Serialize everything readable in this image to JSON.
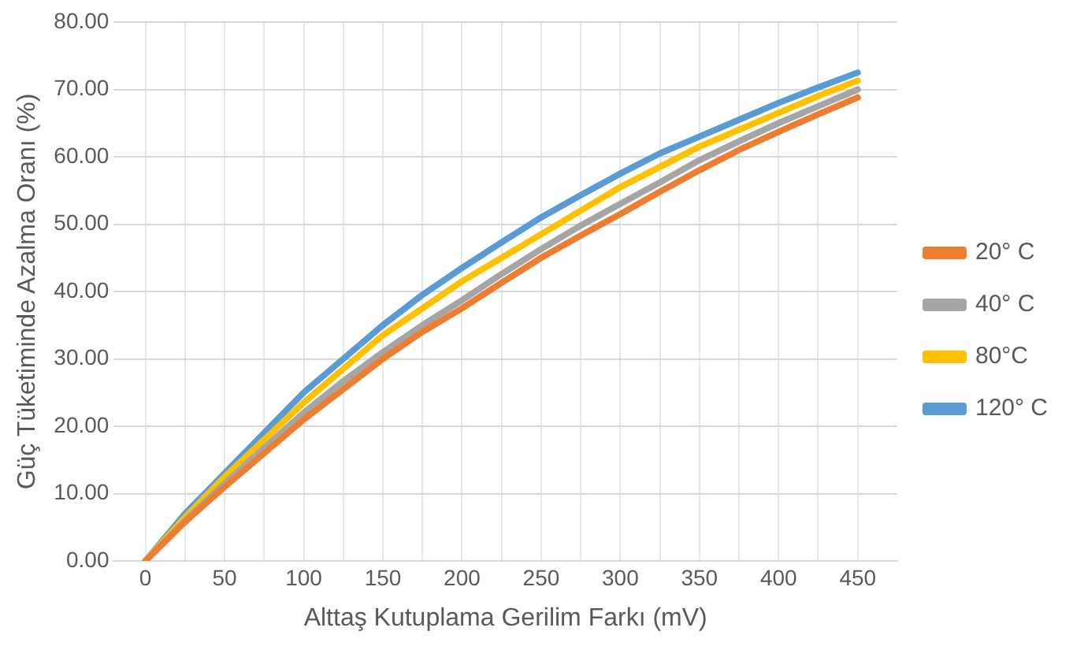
{
  "chart_data": {
    "type": "line",
    "xlabel": "Alttaş Kutuplama Gerilim Farkı (mV)",
    "ylabel": "Güç Tüketiminde Azalma Oranı (%)",
    "x": [
      0,
      25,
      50,
      75,
      100,
      125,
      150,
      175,
      200,
      225,
      250,
      275,
      300,
      325,
      350,
      375,
      400,
      425,
      450
    ],
    "series": [
      {
        "name": "20° C",
        "color": "#ed7d31",
        "values": [
          0,
          5.8,
          11,
          16,
          21,
          25.5,
          30,
          34,
          37.5,
          41.3,
          45,
          48.3,
          51.5,
          54.8,
          58,
          61,
          63.7,
          66.3,
          68.8
        ]
      },
      {
        "name": "40° C",
        "color": "#a5a5a5",
        "values": [
          0,
          6,
          11.5,
          16.8,
          22,
          26.7,
          31,
          35,
          38.7,
          42.6,
          46.3,
          49.8,
          53,
          56.2,
          59.5,
          62.3,
          65,
          67.5,
          70
        ]
      },
      {
        "name": "80°C",
        "color": "#ffc000",
        "values": [
          0,
          6.5,
          12.5,
          18,
          23.5,
          28.5,
          33.5,
          37.5,
          41.5,
          45,
          48.5,
          52,
          55.5,
          58.5,
          61.5,
          64,
          66.5,
          69,
          71.3
        ]
      },
      {
        "name": "120° C",
        "color": "#5b9bd5",
        "values": [
          0,
          7,
          13,
          19,
          25,
          30,
          35,
          39.5,
          43.5,
          47.3,
          51,
          54.3,
          57.5,
          60.5,
          63,
          65.5,
          68,
          70.3,
          72.5
        ]
      }
    ],
    "xlim": [
      -20,
      475
    ],
    "xticks": [
      0,
      {
        "value": 25,
        "label": null
      },
      50,
      {
        "value": 75,
        "label": null
      },
      100,
      {
        "value": 125,
        "label": null
      },
      150,
      {
        "value": 175,
        "label": null
      },
      200,
      {
        "value": 225,
        "label": null
      },
      250,
      {
        "value": 275,
        "label": null
      },
      300,
      {
        "value": 325,
        "label": null
      },
      350,
      {
        "value": 375,
        "label": null
      },
      400,
      {
        "value": 425,
        "label": null
      },
      450
    ],
    "ylim": [
      0,
      80
    ],
    "yticks": [
      {
        "value": 0,
        "label": "0.00"
      },
      {
        "value": 10,
        "label": "10.00"
      },
      {
        "value": 20,
        "label": "20.00"
      },
      {
        "value": 30,
        "label": "30.00"
      },
      {
        "value": 40,
        "label": "40.00"
      },
      {
        "value": 50,
        "label": "50.00"
      },
      {
        "value": 60,
        "label": "60.00"
      },
      {
        "value": 70,
        "label": "70.00"
      },
      {
        "value": 80,
        "label": "80.00"
      }
    ],
    "grid": true,
    "legend": "right",
    "marker": "none",
    "line_style": "solid"
  }
}
